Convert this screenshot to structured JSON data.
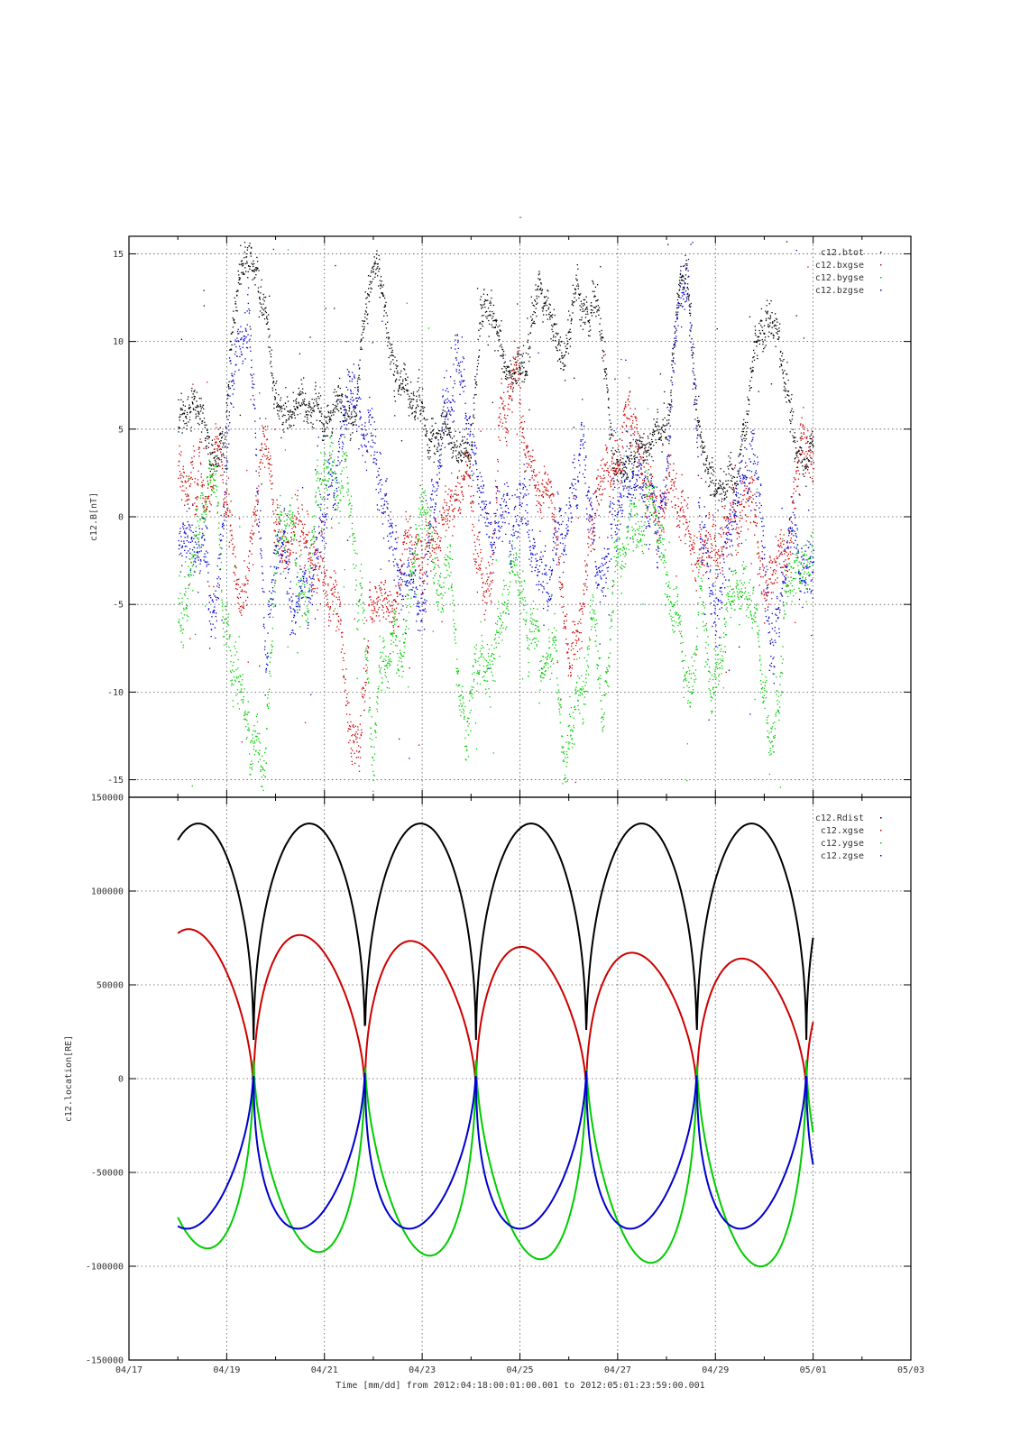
{
  "figure": {
    "top_title": "-",
    "xlabel": "Time [mm/dd]  from 2012:04:18:00:01:00.001  to  2012:05:01:23:59:00.001",
    "x_tick_labels": [
      "04/17",
      "04/19",
      "04/21",
      "04/23",
      "04/25",
      "04/27",
      "04/29",
      "05/01",
      "05/03"
    ],
    "grid": true
  },
  "chart_data": [
    {
      "type": "scatter",
      "ylabel": "c12.B[nT]",
      "x_unit": "days since 2012-04-17 00:00",
      "xlim": [
        "2012-04-17",
        "2012-05-03"
      ],
      "ylim": [
        -16,
        16
      ],
      "y_ticks": [
        -15,
        -10,
        -5,
        0,
        5,
        10,
        15
      ],
      "legend_position": "top-right",
      "series": [
        {
          "name": "c12.btot",
          "color": "#000000",
          "anchors": [
            [
              1.05,
              6.2
            ],
            [
              1.3,
              6.5
            ],
            [
              1.6,
              4.8
            ],
            [
              1.8,
              3.8
            ],
            [
              1.95,
              5.2
            ],
            [
              2.1,
              11
            ],
            [
              2.3,
              14
            ],
            [
              2.45,
              15.5
            ],
            [
              2.6,
              14
            ],
            [
              2.8,
              11
            ],
            [
              3.0,
              7
            ],
            [
              3.2,
              6.2
            ],
            [
              3.4,
              6.8
            ],
            [
              3.6,
              7.1
            ],
            [
              3.8,
              6.5
            ],
            [
              4.1,
              5.8
            ],
            [
              4.4,
              6.8
            ],
            [
              4.6,
              5.8
            ],
            [
              4.85,
              12
            ],
            [
              5.0,
              14
            ],
            [
              5.2,
              12
            ],
            [
              5.35,
              8
            ],
            [
              5.6,
              7.5
            ],
            [
              5.9,
              6.6
            ],
            [
              6.1,
              5.5
            ],
            [
              6.35,
              5
            ],
            [
              6.5,
              5.4
            ],
            [
              6.65,
              4.5
            ],
            [
              6.8,
              4.4
            ],
            [
              7.0,
              5
            ],
            [
              7.2,
              12
            ],
            [
              7.4,
              13
            ],
            [
              7.6,
              10
            ],
            [
              7.85,
              8
            ],
            [
              8.1,
              9.5
            ],
            [
              8.4,
              12.5
            ],
            [
              8.7,
              10.5
            ],
            [
              8.9,
              9
            ],
            [
              9.15,
              14
            ],
            [
              9.35,
              12
            ],
            [
              9.6,
              11
            ],
            [
              9.75,
              7
            ],
            [
              9.9,
              3
            ],
            [
              10.1,
              3.6
            ],
            [
              10.4,
              3.8
            ],
            [
              10.6,
              4.5
            ],
            [
              10.8,
              4.2
            ],
            [
              11.0,
              4.8
            ],
            [
              11.2,
              12
            ],
            [
              11.4,
              13.5
            ],
            [
              11.55,
              8
            ],
            [
              11.7,
              6
            ],
            [
              11.8,
              3.5
            ],
            [
              11.95,
              2.8
            ],
            [
              12.1,
              3
            ],
            [
              12.4,
              2.8
            ],
            [
              12.6,
              5
            ],
            [
              12.8,
              9
            ],
            [
              13.05,
              12.5
            ],
            [
              13.2,
              12
            ],
            [
              13.35,
              9
            ],
            [
              13.6,
              5
            ],
            [
              13.8,
              4.2
            ],
            [
              14.0,
              4.5
            ]
          ],
          "volatility": 0.55,
          "scatter": 1.2
        },
        {
          "name": "c12.bxgse",
          "color": "#cc0000",
          "anchors": [
            [
              1.05,
              2.5
            ],
            [
              1.3,
              3.5
            ],
            [
              1.6,
              2.5
            ],
            [
              1.8,
              3.2
            ],
            [
              1.95,
              2
            ],
            [
              2.1,
              -1
            ],
            [
              2.3,
              -6
            ],
            [
              2.45,
              -3
            ],
            [
              2.7,
              4
            ],
            [
              2.9,
              2.5
            ],
            [
              3.1,
              0.5
            ],
            [
              3.3,
              1.5
            ],
            [
              3.5,
              -1
            ],
            [
              3.7,
              -2.5
            ],
            [
              3.9,
              -3
            ],
            [
              4.1,
              -5
            ],
            [
              4.3,
              -5.5
            ],
            [
              4.5,
              -10
            ],
            [
              4.7,
              -14
            ],
            [
              4.9,
              -5
            ],
            [
              5.15,
              -4
            ],
            [
              5.3,
              -6
            ],
            [
              5.5,
              -3
            ],
            [
              5.75,
              -1
            ],
            [
              6.0,
              0
            ],
            [
              6.2,
              -1.5
            ],
            [
              6.45,
              1
            ],
            [
              6.65,
              -0.5
            ],
            [
              6.9,
              2
            ],
            [
              7.1,
              -2
            ],
            [
              7.4,
              -6
            ],
            [
              7.6,
              5
            ],
            [
              7.85,
              7.5
            ],
            [
              8.1,
              6
            ],
            [
              8.4,
              3
            ],
            [
              8.6,
              2
            ],
            [
              8.8,
              -3
            ],
            [
              9.0,
              -8
            ],
            [
              9.25,
              -5
            ],
            [
              9.45,
              0
            ],
            [
              9.7,
              1.5
            ],
            [
              10.0,
              3
            ],
            [
              10.2,
              4
            ],
            [
              10.5,
              3.8
            ],
            [
              10.7,
              2.5
            ],
            [
              10.9,
              1.5
            ],
            [
              11.1,
              0.5
            ],
            [
              11.3,
              -1
            ],
            [
              11.6,
              -3.5
            ],
            [
              11.8,
              -2
            ],
            [
              12.0,
              -1
            ],
            [
              12.2,
              0.5
            ],
            [
              12.4,
              -0.5
            ],
            [
              12.6,
              1.5
            ],
            [
              12.8,
              2
            ],
            [
              13.0,
              -3
            ],
            [
              13.15,
              -4
            ],
            [
              13.4,
              -3
            ],
            [
              13.6,
              2.5
            ],
            [
              13.8,
              3.2
            ],
            [
              14.0,
              3
            ]
          ],
          "volatility": 0.9,
          "scatter": 1.6
        },
        {
          "name": "c12.bygse",
          "color": "#00cc00",
          "anchors": [
            [
              1.05,
              -5.8
            ],
            [
              1.3,
              -3
            ],
            [
              1.6,
              -0.5
            ],
            [
              1.8,
              -2
            ],
            [
              1.95,
              -5
            ],
            [
              2.1,
              -9
            ],
            [
              2.3,
              -11
            ],
            [
              2.45,
              -14
            ],
            [
              2.6,
              -12
            ],
            [
              2.75,
              -13
            ],
            [
              2.9,
              -10
            ],
            [
              3.05,
              -1
            ],
            [
              3.3,
              1
            ],
            [
              3.45,
              -3
            ],
            [
              3.6,
              -6.5
            ],
            [
              3.8,
              1.5
            ],
            [
              4.0,
              3
            ],
            [
              4.2,
              2.5
            ],
            [
              4.4,
              4
            ],
            [
              4.6,
              0
            ],
            [
              4.8,
              -5
            ],
            [
              5.0,
              -14
            ],
            [
              5.2,
              -8
            ],
            [
              5.4,
              -6
            ],
            [
              5.6,
              -7
            ],
            [
              5.8,
              -2
            ],
            [
              6.0,
              -1
            ],
            [
              6.2,
              -3
            ],
            [
              6.5,
              -2
            ],
            [
              6.7,
              -9
            ],
            [
              6.9,
              -12
            ],
            [
              7.1,
              -7
            ],
            [
              7.3,
              -12
            ],
            [
              7.5,
              -8
            ],
            [
              7.7,
              -5
            ],
            [
              7.9,
              -5
            ],
            [
              8.1,
              -6
            ],
            [
              8.3,
              -9
            ],
            [
              8.5,
              -11
            ],
            [
              8.7,
              -8
            ],
            [
              8.9,
              -13
            ],
            [
              9.1,
              -10
            ],
            [
              9.3,
              -7
            ],
            [
              9.5,
              -6
            ],
            [
              9.7,
              -11
            ],
            [
              9.9,
              -4
            ],
            [
              10.1,
              -2
            ],
            [
              10.3,
              -2
            ],
            [
              10.5,
              -0.5
            ],
            [
              10.7,
              0
            ],
            [
              10.9,
              -3
            ],
            [
              11.1,
              -4.5
            ],
            [
              11.3,
              -8
            ],
            [
              11.5,
              -11
            ],
            [
              11.7,
              -5
            ],
            [
              11.9,
              -9
            ],
            [
              12.1,
              -8
            ],
            [
              12.3,
              -6
            ],
            [
              12.5,
              -3
            ],
            [
              12.7,
              -4
            ],
            [
              12.9,
              -8
            ],
            [
              13.1,
              -12
            ],
            [
              13.3,
              -10
            ],
            [
              13.5,
              -5
            ],
            [
              13.8,
              -3
            ],
            [
              14.0,
              -1.5
            ]
          ],
          "volatility": 0.9,
          "scatter": 1.6
        },
        {
          "name": "c12.bzgse",
          "color": "#0000cc",
          "anchors": [
            [
              1.05,
              -1
            ],
            [
              1.3,
              -2
            ],
            [
              1.5,
              -1.5
            ],
            [
              1.7,
              -3.5
            ],
            [
              1.9,
              0
            ],
            [
              2.1,
              10
            ],
            [
              2.3,
              9
            ],
            [
              2.45,
              12
            ],
            [
              2.6,
              5
            ],
            [
              2.8,
              -8
            ],
            [
              3.0,
              -2
            ],
            [
              3.2,
              -3
            ],
            [
              3.4,
              -5
            ],
            [
              3.6,
              -4.5
            ],
            [
              3.8,
              -2
            ],
            [
              4.0,
              3
            ],
            [
              4.2,
              0
            ],
            [
              4.4,
              4
            ],
            [
              4.6,
              9
            ],
            [
              4.8,
              3
            ],
            [
              5.0,
              2
            ],
            [
              5.2,
              1
            ],
            [
              5.4,
              -2
            ],
            [
              5.6,
              -3
            ],
            [
              5.8,
              -5
            ],
            [
              6.0,
              -3
            ],
            [
              6.3,
              2
            ],
            [
              6.5,
              6
            ],
            [
              6.7,
              9
            ],
            [
              6.9,
              7
            ],
            [
              7.1,
              1
            ],
            [
              7.35,
              -1
            ],
            [
              7.6,
              2
            ],
            [
              7.8,
              -1
            ],
            [
              8.0,
              1
            ],
            [
              8.2,
              -2
            ],
            [
              8.4,
              0
            ],
            [
              8.6,
              -3
            ],
            [
              8.8,
              1
            ],
            [
              9.0,
              -2
            ],
            [
              9.25,
              3
            ],
            [
              9.45,
              -1
            ],
            [
              9.7,
              -3
            ],
            [
              9.9,
              -1.5
            ],
            [
              10.1,
              -1
            ],
            [
              10.3,
              0
            ],
            [
              10.5,
              -1
            ],
            [
              10.7,
              -1.5
            ],
            [
              10.9,
              -2
            ],
            [
              11.1,
              7
            ],
            [
              11.3,
              12
            ],
            [
              11.5,
              10
            ],
            [
              11.7,
              -2
            ],
            [
              11.9,
              -4
            ],
            [
              12.1,
              -2
            ],
            [
              12.3,
              0
            ],
            [
              12.5,
              2
            ],
            [
              12.7,
              5
            ],
            [
              12.9,
              3
            ],
            [
              13.1,
              -8
            ],
            [
              13.3,
              -4
            ],
            [
              13.5,
              0
            ],
            [
              13.7,
              -1
            ],
            [
              13.9,
              -2.5
            ],
            [
              14.0,
              -2
            ]
          ],
          "volatility": 1.0,
          "scatter": 1.8
        }
      ]
    },
    {
      "type": "line",
      "ylabel": "c12.location[RE]",
      "x_unit": "days since 2012-04-17 00:00",
      "xlim": [
        "2012-04-17",
        "2012-05-03"
      ],
      "ylim": [
        -150000,
        150000
      ],
      "y_ticks": [
        -150000,
        -100000,
        -50000,
        0,
        50000,
        100000,
        150000
      ],
      "legend_position": "top-right",
      "orbit": {
        "t0": 1.0,
        "t1": 14.0,
        "period": 2.263,
        "perigee_times": [
          2.55,
          4.83,
          7.1,
          9.36,
          11.62,
          13.86
        ]
      },
      "series": [
        {
          "name": "c12.Rdist",
          "color": "#000000",
          "apogee": 136000,
          "perigee": 14000
        },
        {
          "name": "c12.xgse",
          "color": "#cc0000",
          "apogee_start": 80000,
          "apogee_end": 62000,
          "perigee": -8000
        },
        {
          "name": "c12.ygse",
          "color": "#00cc00",
          "min_start": -90000,
          "min_end": -101000,
          "perigee": 12000
        },
        {
          "name": "c12.zgse",
          "color": "#0000cc",
          "min": -80000,
          "perigee": 9000
        }
      ]
    }
  ]
}
